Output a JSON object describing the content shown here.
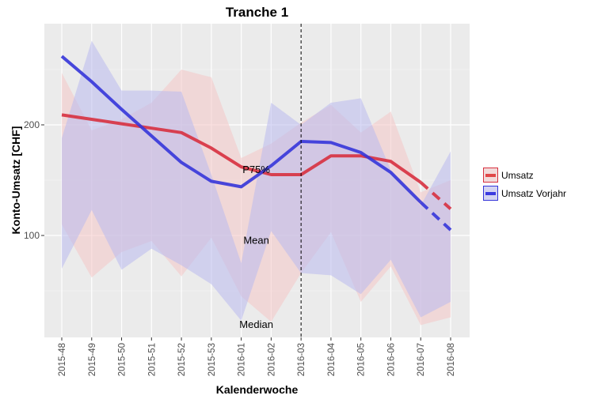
{
  "chart_data": {
    "type": "line",
    "title": "Tranche 1",
    "xlabel": "Kalenderwoche",
    "ylabel": "Konto-Umsatz [CHF]",
    "categories": [
      "2015-48",
      "2015-49",
      "2015-50",
      "2015-51",
      "2015-52",
      "2015-53",
      "2016-01",
      "2016-02",
      "2016-03",
      "2016-04",
      "2016-05",
      "2016-06",
      "2016-07",
      "2016-08"
    ],
    "yticks": [
      100,
      200
    ],
    "ylim": [
      8,
      291
    ],
    "grid": true,
    "vline_at": "2016-03",
    "legend_position": "right",
    "series": [
      {
        "name": "Umsatz",
        "color": "#d7303f",
        "values": [
          209,
          205,
          201,
          197,
          193,
          179,
          162,
          155,
          155,
          172,
          172,
          167,
          148,
          124
        ],
        "dashed_from_index": 12,
        "ribbon_upper": [
          247,
          195,
          205,
          220,
          250,
          243,
          170,
          183,
          202,
          218,
          193,
          212,
          139,
          150
        ],
        "ribbon_lower": [
          110,
          62,
          85,
          95,
          63,
          98,
          45,
          22,
          66,
          103,
          40,
          72,
          19,
          26
        ],
        "ribbon_color": "#f4c6c6"
      },
      {
        "name": "Umsatz Vorjahr",
        "color": "#3535d9",
        "values": [
          262,
          239,
          214,
          190,
          166,
          149,
          144,
          163,
          185,
          184,
          175,
          157,
          130,
          105
        ],
        "dashed_from_index": 12,
        "ribbon_upper": [
          188,
          276,
          231,
          231,
          230,
          155,
          75,
          220,
          200,
          220,
          224,
          159,
          127,
          176
        ],
        "ribbon_lower": [
          70,
          123,
          69,
          88,
          73,
          56,
          23,
          104,
          66,
          64,
          47,
          78,
          26,
          40
        ],
        "ribbon_color": "#b9b9ef"
      }
    ],
    "annotations": [
      {
        "text": "P75%",
        "x": "2016-01",
        "y": 160
      },
      {
        "text": "Mean",
        "x": "2016-01",
        "y": 96
      },
      {
        "text": "Median",
        "x": "2016-01",
        "y": 20
      }
    ]
  },
  "legend": {
    "items": [
      "Umsatz",
      "Umsatz Vorjahr"
    ]
  }
}
